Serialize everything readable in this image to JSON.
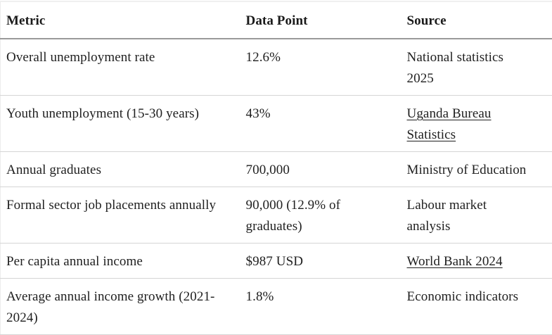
{
  "table": {
    "columns": [
      {
        "label": "Metric"
      },
      {
        "label": "Data Point"
      },
      {
        "label": "Source"
      }
    ],
    "rows": [
      {
        "metric": "Overall unemployment rate",
        "data_point": "12.6%",
        "source": "National statistics\n2025"
      },
      {
        "metric": "Youth unemployment (15-30 years)",
        "data_point": "43%",
        "source": "Uganda Bureau\nStatistics"
      },
      {
        "metric": "Annual graduates",
        "data_point": "700,000",
        "source": "Ministry of Education"
      },
      {
        "metric": "Formal sector job placements annually",
        "data_point": "90,000 (12.9% of\ngraduates)",
        "source": "Labour market\nanalysis"
      },
      {
        "metric": "Per capita annual income",
        "data_point": "$987 USD",
        "source": "World Bank 2024"
      },
      {
        "metric": "Average annual income growth (2021-\n2024)",
        "data_point": "1.8%",
        "source": "Economic indicators"
      }
    ],
    "colors": {
      "text": "#1f1f1f",
      "header_rule": "#9a9a9a",
      "row_rule": "#d5d5d5",
      "top_rule": "#f0f0f0"
    }
  }
}
